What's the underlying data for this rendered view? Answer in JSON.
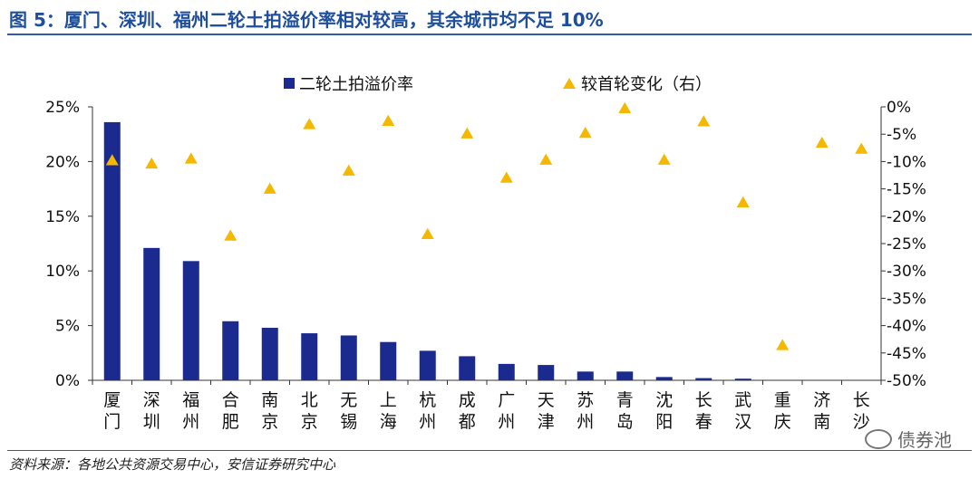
{
  "figure": {
    "title": "图 5：厦门、深圳、福州二轮土拍溢价率相对较高，其余城市均不足 10%",
    "source": "资料来源：各地公共资源交易中心，安信证券研究中心",
    "watermark": "债券池"
  },
  "colors": {
    "bar": "#1b2a8f",
    "marker": "#f5b800",
    "axis": "#333333",
    "title": "#1f4e9c"
  },
  "chart_data": {
    "type": "bar",
    "categories": [
      "厦门",
      "深圳",
      "福州",
      "合肥",
      "南京",
      "北京",
      "无锡",
      "上海",
      "杭州",
      "成都",
      "广州",
      "天津",
      "苏州",
      "青岛",
      "沈阳",
      "长春",
      "武汉",
      "重庆",
      "济南",
      "长沙"
    ],
    "series": [
      {
        "name": "二轮土拍溢价率",
        "kind": "bar",
        "axis": "left",
        "values": [
          23.6,
          12.1,
          10.9,
          5.4,
          4.8,
          4.3,
          4.1,
          3.5,
          2.7,
          2.2,
          1.5,
          1.4,
          0.8,
          0.8,
          0.3,
          0.2,
          0.15,
          0,
          0,
          0
        ]
      },
      {
        "name": "较首轮变化（右）",
        "kind": "marker",
        "axis": "right",
        "values": [
          -9.8,
          -10.4,
          -9.5,
          -23.6,
          -15.0,
          -3.2,
          -11.7,
          -2.6,
          -23.3,
          -4.9,
          -13.0,
          -9.7,
          -4.8,
          -0.3,
          -9.7,
          -2.7,
          -17.5,
          -43.6,
          -6.6,
          -7.7
        ]
      }
    ],
    "y_left": {
      "ticks": [
        "0%",
        "5%",
        "10%",
        "15%",
        "20%",
        "25%"
      ],
      "lim": [
        0,
        25
      ]
    },
    "y_right": {
      "ticks": [
        "0%",
        "-5%",
        "-10%",
        "-15%",
        "-20%",
        "-25%",
        "-30%",
        "-35%",
        "-40%",
        "-45%",
        "-50%"
      ],
      "lim": [
        -50,
        0
      ]
    },
    "legend_placement": "top-center",
    "grid": false
  }
}
